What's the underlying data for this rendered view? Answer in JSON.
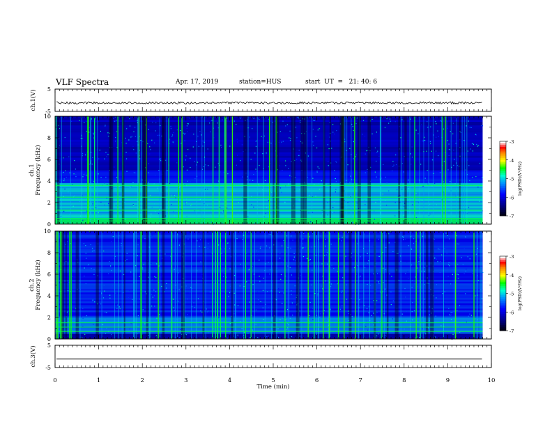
{
  "header": {
    "title": "VLF Spectra",
    "date": "Apr. 17, 2019",
    "station": "station=HUS",
    "start": "start  UT  =   21: 40: 6"
  },
  "colors": {
    "spectrogram_bg": "#000066",
    "colorbar": [
      "#000000",
      "#000080",
      "#0000ff",
      "#00aaff",
      "#00ffcc",
      "#00ff00",
      "#ffff00",
      "#ff8800",
      "#ff0000",
      "#ffffff"
    ]
  },
  "chart_data": [
    {
      "type": "line",
      "panel": "ch1-waveform",
      "ylabel": "ch.1(V)",
      "ylim": [
        -5,
        5
      ],
      "yticks": [
        "5",
        "-5"
      ],
      "xlim": [
        0,
        10
      ],
      "level": -1.2,
      "span": [
        0,
        9.8
      ]
    },
    {
      "type": "heatmap",
      "panel": "ch1-spectrogram",
      "ylabel": "ch.1",
      "ylabel2": "Frequency (kHz)",
      "ylim": [
        0,
        10
      ],
      "yticks": [
        "0",
        "2",
        "4",
        "6",
        "8",
        "10"
      ],
      "xlim": [
        0,
        10
      ],
      "span": [
        0,
        9.8
      ],
      "colorbar": {
        "label": "log(PSD)(V²/Hz)",
        "range": [
          -7,
          -3
        ],
        "ticks": [
          "-3",
          "-4",
          "-5",
          "-6",
          "-7"
        ]
      }
    },
    {
      "type": "heatmap",
      "panel": "ch2-spectrogram",
      "ylabel": "ch.2",
      "ylabel2": "Frequency (kHz)",
      "ylim": [
        0,
        10
      ],
      "yticks": [
        "0",
        "2",
        "4",
        "6",
        "8",
        "10"
      ],
      "xlim": [
        0,
        10
      ],
      "span": [
        0,
        9.8
      ],
      "colorbar": {
        "label": "log(PSD)(V²/Hz)",
        "range": [
          -7,
          -3
        ],
        "ticks": [
          "-3",
          "-4",
          "-5",
          "-6",
          "-7"
        ]
      }
    },
    {
      "type": "line",
      "panel": "ch3-waveform",
      "ylabel": "ch.3(V)",
      "ylim": [
        -5,
        5
      ],
      "yticks": [
        "5",
        "-5"
      ],
      "xlim": [
        0,
        10
      ],
      "level": -1.2,
      "span": [
        0,
        9.8
      ],
      "xlabel": "Time  (min)",
      "xticks": [
        "0",
        "1",
        "2",
        "3",
        "4",
        "5",
        "6",
        "7",
        "8",
        "9",
        "10"
      ]
    }
  ]
}
